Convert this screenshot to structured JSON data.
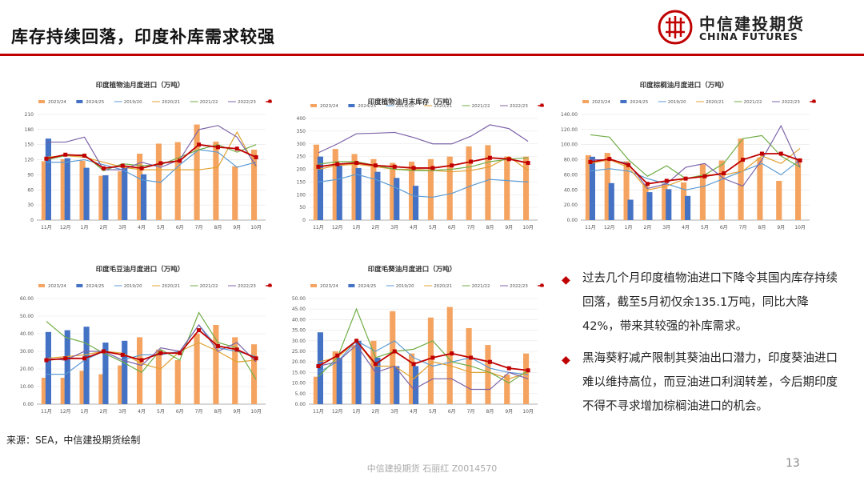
{
  "header": {
    "title": "库存持续回落，印度补库需求较强",
    "brand_cn": "中信建投期货",
    "brand_en": "CHINA FUTURES"
  },
  "notes": [
    "过去几个月印度植物油进口下降令其国内库存持续回落，截至5月初仅余135.1万吨，同比大降42%，带来其较强的补库需求。",
    "黑海葵籽减产限制其葵油出口潜力，印度葵油进口难以维持高位，而豆油进口利润转差，今后期印度不得不寻求增加棕榈油进口的机会。"
  ],
  "source": "来源：SEA，中信建投期货绘制",
  "footer": "中信建投期货 石丽红 Z0014570",
  "page_number": "13",
  "colors": {
    "s2324": "#f4a460",
    "s2425": "#4472c4",
    "s1920": "#5b9bd5",
    "s2021": "#e0a030",
    "s2122": "#70ad47",
    "s2223": "#7c63a8",
    "avg": "#c00000"
  },
  "chart_data": [
    {
      "type": "bar",
      "title": "印度植物油月度进口（万吨）",
      "categories": [
        "11月",
        "12月",
        "1月",
        "2月",
        "3月",
        "4月",
        "5月",
        "6月",
        "7月",
        "8月",
        "9月",
        "10月"
      ],
      "ylim": [
        0,
        210
      ],
      "yticks": [
        0,
        30,
        60,
        90,
        120,
        150,
        180,
        210
      ],
      "legend_position": "top",
      "bars": [
        {
          "name": "2023/24",
          "values": [
            117,
            121,
            118,
            88,
            97,
            132,
            152,
            155,
            190,
            156,
            107,
            140
          ]
        },
        {
          "name": "2024/25",
          "values": [
            162,
            123,
            104,
            89,
            104,
            91
          ]
        }
      ],
      "lines": [
        {
          "name": "2019/20",
          "values": [
            115,
            115,
            120,
            110,
            100,
            80,
            75,
            110,
            140,
            135,
            105,
            115
          ]
        },
        {
          "name": "2020/21",
          "values": [
            125,
            128,
            125,
            115,
            105,
            100,
            100,
            100,
            100,
            105,
            175,
            105
          ]
        },
        {
          "name": "2021/22",
          "values": [
            120,
            128,
            130,
            98,
            112,
            108,
            110,
            125,
            140,
            150,
            135,
            150
          ]
        },
        {
          "name": "2022/23",
          "values": [
            155,
            155,
            165,
            100,
            100,
            115,
            105,
            120,
            180,
            188,
            165,
            108
          ]
        },
        {
          "name": "五年均值",
          "values": [
            122,
            130,
            128,
            103,
            108,
            103,
            113,
            118,
            150,
            145,
            142,
            125
          ]
        }
      ]
    },
    {
      "type": "bar",
      "title": "印度植物油月末库存（万吨）",
      "categories": [
        "11月",
        "12月",
        "1月",
        "2月",
        "3月",
        "4月",
        "5月",
        "6月",
        "7月",
        "8月",
        "9月",
        "10月"
      ],
      "ylim": [
        0,
        400
      ],
      "yticks": [
        0,
        50,
        100,
        150,
        200,
        250,
        300,
        350,
        400
      ],
      "legend_position": "top",
      "bars": [
        {
          "name": "2023/24",
          "values": [
            297,
            280,
            260,
            240,
            225,
            230,
            240,
            250,
            290,
            295,
            250,
            250
          ]
        },
        {
          "name": "2024/25",
          "values": [
            250,
            216,
            205,
            190,
            166,
            135
          ]
        }
      ],
      "lines": [
        {
          "name": "2019/20",
          "values": [
            150,
            160,
            180,
            160,
            130,
            95,
            90,
            105,
            135,
            160,
            155,
            150
          ]
        },
        {
          "name": "2020/21",
          "values": [
            200,
            215,
            220,
            210,
            200,
            200,
            195,
            190,
            195,
            210,
            250,
            195
          ]
        },
        {
          "name": "2021/22",
          "values": [
            220,
            230,
            230,
            215,
            200,
            195,
            195,
            200,
            210,
            230,
            240,
            245
          ]
        },
        {
          "name": "2022/23",
          "values": [
            265,
            300,
            340,
            342,
            345,
            325,
            300,
            300,
            330,
            375,
            360,
            310
          ]
        },
        {
          "name": "五年均值",
          "values": [
            210,
            220,
            225,
            215,
            210,
            205,
            205,
            215,
            230,
            245,
            240,
            225
          ]
        }
      ]
    },
    {
      "type": "bar",
      "title": "印度棕榈油月度进口（万吨）",
      "categories": [
        "11月",
        "12月",
        "1月",
        "2月",
        "3月",
        "4月",
        "5月",
        "6月",
        "7月",
        "8月",
        "9月",
        "10月"
      ],
      "ylim": [
        0,
        140
      ],
      "yticks": [
        0,
        20,
        40,
        60,
        80,
        100,
        120,
        140
      ],
      "tick_labels": [
        "0.00",
        "20.00",
        "40.00",
        "60.00",
        "80.00",
        "100.00",
        "120.00",
        "140.00"
      ],
      "legend_position": "top",
      "bars": [
        {
          "name": "2023/24",
          "values": [
            86,
            89,
            78,
            48,
            48,
            50,
            74,
            79,
            108,
            83,
            52,
            82
          ]
        },
        {
          "name": "2024/25",
          "values": [
            84,
            49,
            27,
            37,
            41,
            32
          ]
        }
      ],
      "lines": [
        {
          "name": "2019/20",
          "values": [
            65,
            68,
            65,
            55,
            48,
            40,
            45,
            55,
            65,
            75,
            60,
            80
          ]
        },
        {
          "name": "2020/21",
          "values": [
            75,
            80,
            70,
            40,
            45,
            55,
            60,
            60,
            65,
            85,
            75,
            95
          ]
        },
        {
          "name": "2021/22",
          "values": [
            113,
            110,
            80,
            58,
            72,
            55,
            60,
            75,
            108,
            112,
            85,
            70
          ]
        },
        {
          "name": "2022/23",
          "values": [
            80,
            80,
            75,
            42,
            48,
            70,
            75,
            55,
            45,
            80,
            125,
            70
          ]
        },
        {
          "name": "五年均值",
          "values": [
            77,
            81,
            73,
            48,
            52,
            55,
            58,
            62,
            80,
            88,
            88,
            79
          ]
        }
      ]
    },
    {
      "type": "bar",
      "title": "印度毛豆油月度进口（万吨）",
      "categories": [
        "11月",
        "12月",
        "1月",
        "2月",
        "3月",
        "4月",
        "5月",
        "6月",
        "7月",
        "8月",
        "9月",
        "10月"
      ],
      "ylim": [
        0,
        60
      ],
      "yticks": [
        0,
        10,
        20,
        30,
        40,
        50,
        60
      ],
      "tick_labels": [
        "0.00",
        "10.00",
        "20.00",
        "30.00",
        "40.00",
        "50.00",
        "60.00"
      ],
      "legend_position": "top",
      "bars": [
        {
          "name": "2023/24",
          "values": [
            15,
            15,
            19,
            17,
            22,
            38,
            31,
            25,
            40,
            45,
            38,
            34
          ]
        },
        {
          "name": "2024/25",
          "values": [
            41,
            42,
            44,
            35,
            36
          ]
        }
      ],
      "lines": [
        {
          "name": "2019/20",
          "values": [
            17,
            17,
            25,
            30,
            25,
            28,
            28,
            30,
            45,
            32,
            30,
            27
          ]
        },
        {
          "name": "2020/21",
          "values": [
            26,
            27,
            28,
            30,
            29,
            23,
            20,
            30,
            35,
            30,
            24,
            25
          ]
        },
        {
          "name": "2021/22",
          "values": [
            47,
            38,
            35,
            29,
            24,
            18,
            31,
            25,
            52,
            35,
            32,
            14
          ]
        },
        {
          "name": "2022/23",
          "values": [
            26,
            25,
            30,
            30,
            25,
            22,
            32,
            30,
            45,
            30,
            35,
            24
          ]
        },
        {
          "name": "五年均值",
          "values": [
            25,
            26,
            26,
            30,
            28,
            25,
            29,
            29,
            42,
            33,
            31,
            26
          ]
        }
      ]
    },
    {
      "type": "bar",
      "title": "印度毛葵油月度进口（万吨）",
      "categories": [
        "11月",
        "12月",
        "1月",
        "2月",
        "3月",
        "4月",
        "5月",
        "6月",
        "7月",
        "8月",
        "9月",
        "10月"
      ],
      "ylim": [
        0,
        50
      ],
      "yticks": [
        0,
        5,
        10,
        15,
        20,
        25,
        30,
        35,
        40,
        45,
        50
      ],
      "tick_labels": [
        "0.00",
        "5.00",
        "10.00",
        "15.00",
        "20.00",
        "25.00",
        "30.00",
        "35.00",
        "40.00",
        "45.00",
        "50.00"
      ],
      "legend_position": "top",
      "bars": [
        {
          "name": "2023/24",
          "values": [
            13,
            25,
            28,
            30,
            44,
            24,
            41,
            46,
            36,
            28,
            14,
            24
          ]
        },
        {
          "name": "2024/25",
          "values": [
            34,
            22,
            30,
            22,
            18,
            18
          ]
        }
      ],
      "lines": [
        {
          "name": "2019/20",
          "values": [
            15,
            20,
            30,
            25,
            30,
            22,
            18,
            20,
            22,
            17,
            15,
            14
          ]
        },
        {
          "name": "2020/21",
          "values": [
            20,
            22,
            30,
            18,
            18,
            12,
            20,
            18,
            15,
            15,
            12,
            15
          ]
        },
        {
          "name": "2021/22",
          "values": [
            13,
            22,
            45,
            22,
            25,
            26,
            30,
            20,
            18,
            15,
            10,
            16
          ]
        },
        {
          "name": "2022/23",
          "values": [
            18,
            20,
            28,
            15,
            18,
            7,
            12,
            12,
            7,
            7,
            15,
            12
          ]
        },
        {
          "name": "五年均值",
          "values": [
            18,
            23,
            30,
            19,
            25,
            19,
            22,
            24,
            22,
            20,
            17,
            16
          ]
        }
      ]
    }
  ]
}
